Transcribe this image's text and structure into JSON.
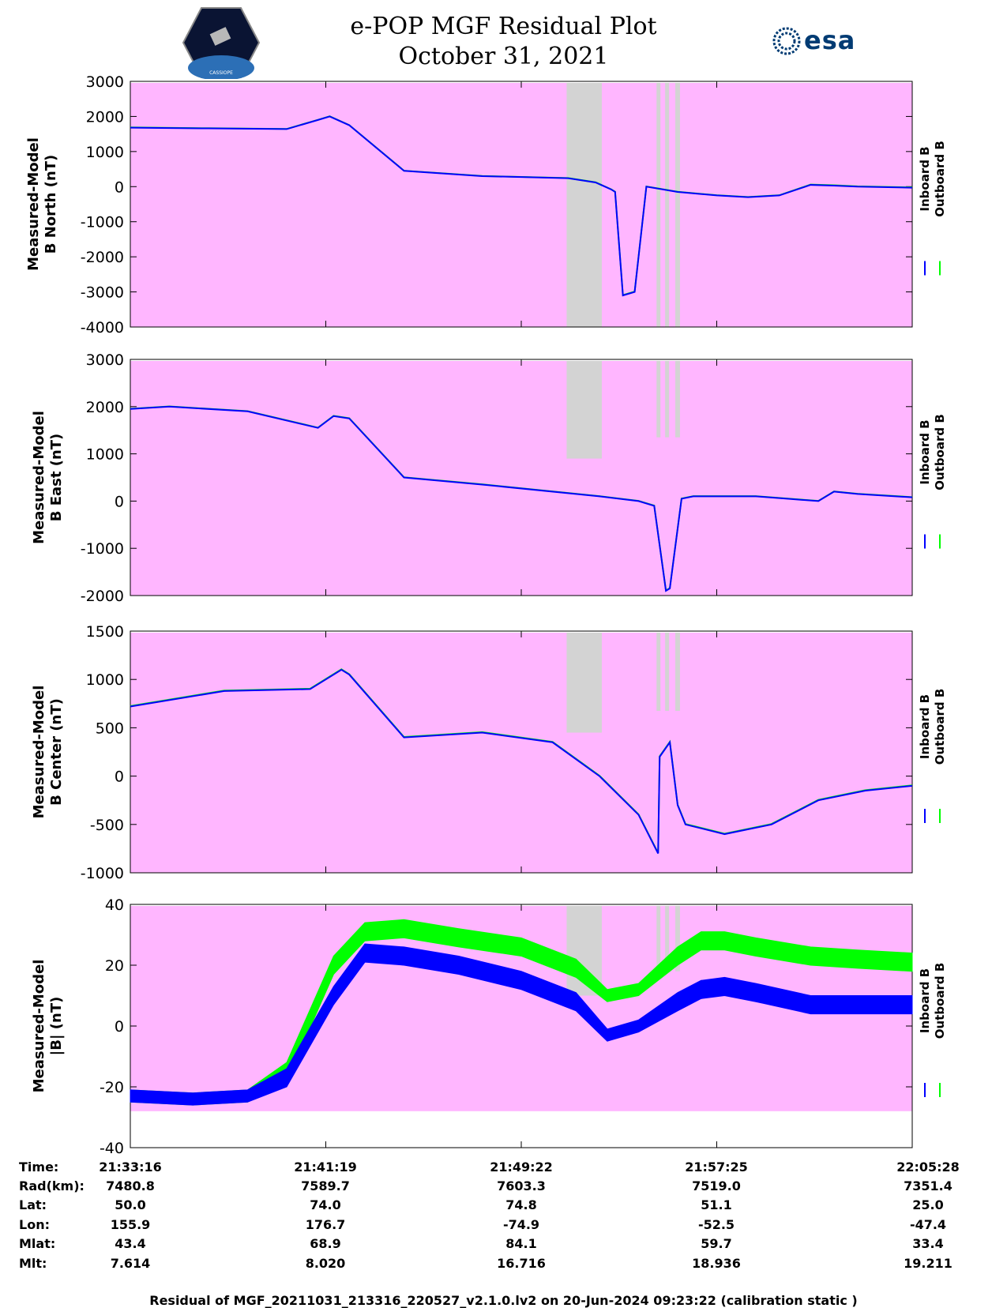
{
  "title": {
    "line1": "e-POP MGF Residual Plot",
    "line2": "October 31, 2021",
    "esa_logo_text": "esa",
    "epop_logo_text": "CASSIOPE"
  },
  "colors": {
    "background": "#ffb6ff",
    "gap": "#d3d3d3",
    "inboard": "#0000ff",
    "outboard": "#00ff00"
  },
  "legend": {
    "inboard": "Inboard B",
    "outboard": "Outboard B"
  },
  "chart_data": [
    {
      "type": "line",
      "ylabel": [
        "Measured-Model",
        "B North (nT)"
      ],
      "ylim": [
        -4000,
        3000
      ],
      "yticks": [
        "3000",
        "2000",
        "1000",
        "0",
        "-1000",
        "-2000",
        "-3000",
        "-4000"
      ],
      "x": [
        0,
        0.1,
        0.2,
        0.24,
        0.255,
        0.28,
        0.35,
        0.45,
        0.56,
        0.595,
        0.615,
        0.62,
        0.63,
        0.645,
        0.66,
        0.7,
        0.75,
        0.79,
        0.83,
        0.87,
        0.9,
        0.93,
        1.0
      ],
      "series": [
        {
          "name": "Inboard B",
          "values": [
            1680,
            1660,
            1640,
            1900,
            2000,
            1750,
            450,
            300,
            240,
            120,
            -80,
            -150,
            -3100,
            -3000,
            0,
            -150,
            -250,
            -300,
            -250,
            50,
            30,
            0,
            -30
          ]
        },
        {
          "name": "Outboard B",
          "values": [
            1690,
            1665,
            1645,
            1905,
            2005,
            1755,
            455,
            305,
            245,
            125,
            -75,
            -145,
            -3090,
            -2990,
            5,
            -145,
            -245,
            -295,
            -245,
            60,
            40,
            10,
            -20
          ]
        }
      ],
      "gaps": [
        [
          0.558,
          0.603
        ],
        [
          0.673,
          0.678
        ],
        [
          0.684,
          0.689
        ],
        [
          0.697,
          0.703
        ]
      ]
    },
    {
      "type": "line",
      "ylabel": [
        "Measured-Model",
        "B East (nT)"
      ],
      "ylim": [
        -2000,
        3000
      ],
      "yticks": [
        "3000",
        "2000",
        "1000",
        "0",
        "-1000",
        "-2000"
      ],
      "x": [
        0,
        0.05,
        0.15,
        0.24,
        0.26,
        0.28,
        0.35,
        0.45,
        0.6,
        0.65,
        0.67,
        0.685,
        0.69,
        0.705,
        0.72,
        0.8,
        0.84,
        0.88,
        0.9,
        0.93,
        1.0
      ],
      "series": [
        {
          "name": "Inboard B",
          "values": [
            1950,
            2000,
            1900,
            1550,
            1800,
            1750,
            500,
            350,
            100,
            0,
            -100,
            -1900,
            -1850,
            50,
            100,
            100,
            50,
            0,
            200,
            150,
            80
          ]
        },
        {
          "name": "Outboard B",
          "values": [
            1955,
            2005,
            1905,
            1555,
            1805,
            1755,
            505,
            355,
            105,
            5,
            -95,
            -1890,
            -1840,
            55,
            105,
            105,
            55,
            5,
            205,
            155,
            85
          ]
        }
      ],
      "gaps": [
        [
          0.558,
          0.603
        ],
        [
          0.673,
          0.678
        ],
        [
          0.684,
          0.689
        ],
        [
          0.697,
          0.703
        ]
      ]
    },
    {
      "type": "line",
      "ylabel": [
        "Measured-Model",
        "B Center (nT)"
      ],
      "ylim": [
        -1000,
        1500
      ],
      "yticks": [
        "1500",
        "1000",
        "500",
        "0",
        "-500",
        "-1000"
      ],
      "x": [
        0,
        0.12,
        0.23,
        0.27,
        0.28,
        0.35,
        0.45,
        0.54,
        0.6,
        0.65,
        0.675,
        0.677,
        0.69,
        0.7,
        0.71,
        0.76,
        0.82,
        0.88,
        0.94,
        1.0
      ],
      "series": [
        {
          "name": "Inboard B",
          "values": [
            720,
            880,
            900,
            1100,
            1050,
            400,
            450,
            350,
            0,
            -400,
            -800,
            200,
            350,
            -300,
            -500,
            -600,
            -500,
            -250,
            -150,
            -100
          ]
        },
        {
          "name": "Outboard B",
          "values": [
            725,
            885,
            905,
            1105,
            1055,
            405,
            455,
            355,
            5,
            -395,
            -795,
            205,
            355,
            -295,
            -495,
            -595,
            -495,
            -245,
            -145,
            -95
          ]
        }
      ],
      "gaps": [
        [
          0.558,
          0.603
        ],
        [
          0.673,
          0.678
        ],
        [
          0.684,
          0.689
        ],
        [
          0.697,
          0.703
        ]
      ]
    },
    {
      "type": "line",
      "ylabel": [
        "Measured-Model",
        "|B| (nT)"
      ],
      "ylim": [
        -40,
        40
      ],
      "yticks": [
        "40",
        "20",
        "0",
        "-20",
        "-40"
      ],
      "x": [
        0,
        0.08,
        0.15,
        0.2,
        0.26,
        0.3,
        0.35,
        0.42,
        0.5,
        0.57,
        0.61,
        0.65,
        0.7,
        0.73,
        0.76,
        0.8,
        0.87,
        0.93,
        1.0
      ],
      "series": [
        {
          "name": "Inboard B",
          "values": [
            -23,
            -24,
            -23,
            -17,
            10,
            24,
            23,
            20,
            15,
            8,
            -3,
            0,
            8,
            12,
            13,
            11,
            7,
            7,
            7
          ]
        },
        {
          "name": "Outboard B",
          "values": [
            -23,
            -24,
            -23,
            -15,
            20,
            31,
            32,
            29,
            26,
            19,
            10,
            12,
            23,
            28,
            28,
            26,
            23,
            22,
            21
          ]
        }
      ],
      "band_width": [
        2,
        2,
        2,
        3,
        3,
        3,
        3,
        3,
        3,
        3,
        2,
        2,
        3,
        3,
        3,
        3,
        3,
        3,
        3
      ],
      "gaps": [
        [
          0.558,
          0.603
        ],
        [
          0.673,
          0.678
        ],
        [
          0.684,
          0.689
        ],
        [
          0.697,
          0.703
        ]
      ]
    }
  ],
  "ephemeris": {
    "labels": [
      "Time:",
      "Rad(km):",
      "Lat:",
      "Lon:",
      "Mlat:",
      "Mlt:"
    ],
    "columns": [
      [
        "21:33:16",
        "7480.8",
        "50.0",
        "155.9",
        "43.4",
        "7.614"
      ],
      [
        "21:41:19",
        "7589.7",
        "74.0",
        "176.7",
        "68.9",
        "8.020"
      ],
      [
        "21:49:22",
        "7603.3",
        "74.8",
        "-74.9",
        "84.1",
        "16.716"
      ],
      [
        "21:57:25",
        "7519.0",
        "51.1",
        "-52.5",
        "59.7",
        "18.936"
      ],
      [
        "22:05:28",
        "7351.4",
        "25.0",
        "-47.4",
        "33.4",
        "19.211"
      ]
    ]
  },
  "footer": "Residual of MGF_20211031_213316_220527_v2.1.0.lv2 on 20-Jun-2024 09:23:22 (calibration static )"
}
